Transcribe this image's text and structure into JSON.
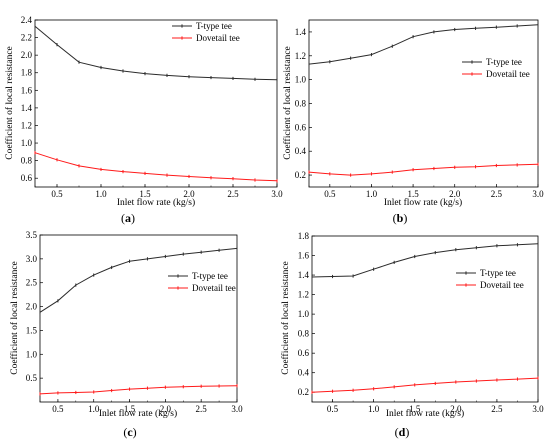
{
  "colors": {
    "t_type": "#2b2b2b",
    "dovetail": "#ff1a1a",
    "axis": "#000000"
  },
  "chart_data": [
    {
      "panel": "a",
      "type": "line",
      "xlabel": "Inlet flow rate (kg/s)",
      "ylabel": "Coefficient of local resistance",
      "xlim": [
        0.25,
        3.0
      ],
      "ylim": [
        0.5,
        2.4
      ],
      "xticks": [
        0.5,
        1.0,
        1.5,
        2.0,
        2.5,
        3.0
      ],
      "yticks": [
        0.6,
        0.8,
        1.0,
        1.2,
        1.4,
        1.6,
        1.8,
        2.0,
        2.2,
        2.4
      ],
      "legend_position": "top-right",
      "x": [
        0.25,
        0.5,
        0.75,
        1.0,
        1.25,
        1.5,
        1.75,
        2.0,
        2.25,
        2.5,
        2.75,
        3.0
      ],
      "series": [
        {
          "name": "T-type tee",
          "color": "#2b2b2b",
          "values": [
            2.33,
            2.12,
            1.92,
            1.86,
            1.82,
            1.79,
            1.77,
            1.755,
            1.745,
            1.735,
            1.725,
            1.72
          ]
        },
        {
          "name": "Dovetail tee",
          "color": "#ff1a1a",
          "values": [
            0.89,
            0.81,
            0.74,
            0.7,
            0.675,
            0.655,
            0.635,
            0.62,
            0.605,
            0.595,
            0.58,
            0.57
          ]
        }
      ]
    },
    {
      "panel": "b",
      "type": "line",
      "xlabel": "Inlet flow rate (kg/s)",
      "ylabel": "Coefficient of local resistance",
      "xlim": [
        0.25,
        3.0
      ],
      "ylim": [
        0.1,
        1.5
      ],
      "xticks": [
        0.5,
        1.0,
        1.5,
        2.0,
        2.5,
        3.0
      ],
      "yticks": [
        0.2,
        0.4,
        0.6,
        0.8,
        1.0,
        1.2,
        1.4
      ],
      "legend_position": "center-right",
      "x": [
        0.25,
        0.5,
        0.75,
        1.0,
        1.25,
        1.5,
        1.75,
        2.0,
        2.25,
        2.5,
        2.75,
        3.0
      ],
      "series": [
        {
          "name": "T-type tee",
          "color": "#2b2b2b",
          "values": [
            1.13,
            1.15,
            1.18,
            1.21,
            1.28,
            1.36,
            1.4,
            1.42,
            1.43,
            1.44,
            1.45,
            1.46
          ]
        },
        {
          "name": "Dovetail tee",
          "color": "#ff1a1a",
          "values": [
            0.225,
            0.21,
            0.2,
            0.21,
            0.225,
            0.245,
            0.255,
            0.265,
            0.27,
            0.28,
            0.285,
            0.29
          ]
        }
      ]
    },
    {
      "panel": "c",
      "type": "line",
      "xlabel": "Inlet flow rate (kg/s)",
      "ylabel": "Coefficient of local resistance",
      "xlim": [
        0.25,
        3.0
      ],
      "ylim": [
        0.0,
        3.5
      ],
      "xticks": [
        0.5,
        1.0,
        1.5,
        2.0,
        2.5,
        3.0
      ],
      "yticks": [
        0.5,
        1.0,
        1.5,
        2.0,
        2.5,
        3.0,
        3.5
      ],
      "legend_position": "center-right",
      "x": [
        0.25,
        0.5,
        0.75,
        1.0,
        1.25,
        1.5,
        1.75,
        2.0,
        2.25,
        2.5,
        2.75,
        3.0
      ],
      "series": [
        {
          "name": "T-type tee",
          "color": "#2b2b2b",
          "values": [
            1.88,
            2.12,
            2.45,
            2.66,
            2.82,
            2.95,
            3.0,
            3.05,
            3.1,
            3.14,
            3.18,
            3.22
          ]
        },
        {
          "name": "Dovetail tee",
          "color": "#ff1a1a",
          "values": [
            0.17,
            0.19,
            0.2,
            0.21,
            0.24,
            0.27,
            0.29,
            0.31,
            0.32,
            0.33,
            0.335,
            0.34
          ]
        }
      ]
    },
    {
      "panel": "d",
      "type": "line",
      "xlabel": "Inlet flow rate (kg/s)",
      "ylabel": "Coefficient of local resistance",
      "xlim": [
        0.25,
        3.0
      ],
      "ylim": [
        0.1,
        1.8
      ],
      "xticks": [
        0.5,
        1.0,
        1.5,
        2.0,
        2.5,
        3.0
      ],
      "yticks": [
        0.2,
        0.4,
        0.6,
        0.8,
        1.0,
        1.2,
        1.4,
        1.6,
        1.8
      ],
      "legend_position": "center-right",
      "x": [
        0.25,
        0.5,
        0.75,
        1.0,
        1.25,
        1.5,
        1.75,
        2.0,
        2.25,
        2.5,
        2.75,
        3.0
      ],
      "series": [
        {
          "name": "T-type tee",
          "color": "#2b2b2b",
          "values": [
            1.38,
            1.385,
            1.39,
            1.46,
            1.53,
            1.59,
            1.63,
            1.66,
            1.68,
            1.7,
            1.71,
            1.72
          ]
        },
        {
          "name": "Dovetail tee",
          "color": "#ff1a1a",
          "values": [
            0.2,
            0.21,
            0.22,
            0.235,
            0.255,
            0.275,
            0.29,
            0.305,
            0.315,
            0.325,
            0.335,
            0.345
          ]
        }
      ]
    }
  ],
  "panel_labels": [
    "(a)",
    "(b)",
    "(c)",
    "(d)"
  ]
}
